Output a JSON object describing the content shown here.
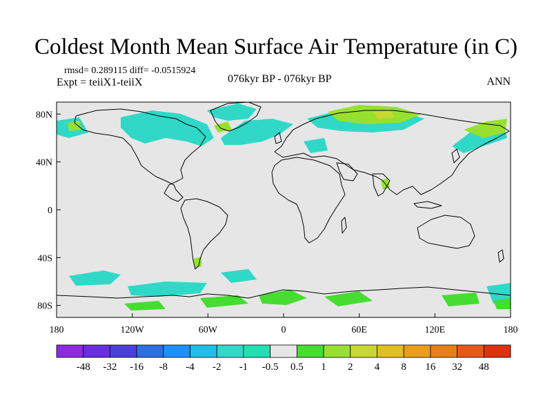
{
  "title": "Coldest Month Mean Surface Air Temperature (in C)",
  "stats": "rmsd= 0.289115 diff= -0.0515924",
  "expt": "Expt = teiiX1-teiiX",
  "period": "076kyr BP - 076kyr BP",
  "season": "ANN",
  "map": {
    "lon_range": [
      -180,
      180
    ],
    "lat_range": [
      -90,
      90
    ],
    "background": "#e6e6e6",
    "coastline_color": "#000000",
    "lon_ticks": [
      {
        "value": -180,
        "label": "180"
      },
      {
        "value": -120,
        "label": "120W"
      },
      {
        "value": -60,
        "label": "60W"
      },
      {
        "value": 0,
        "label": "0"
      },
      {
        "value": 60,
        "label": "60E"
      },
      {
        "value": 120,
        "label": "120E"
      },
      {
        "value": 180,
        "label": "180"
      }
    ],
    "lat_ticks": [
      {
        "value": 80,
        "label": "80N"
      },
      {
        "value": 40,
        "label": "40N"
      },
      {
        "value": 0,
        "label": "0"
      },
      {
        "value": -40,
        "label": "40S"
      },
      {
        "value": -80,
        "label": "80S"
      }
    ]
  },
  "colorbar": {
    "colors": [
      "#8a2be2",
      "#6a2de0",
      "#4b3fdc",
      "#2d6fe0",
      "#1e90ff",
      "#1ec0e8",
      "#30d8c8",
      "#20e0b0",
      "#e6e6e6",
      "#44dd30",
      "#98e030",
      "#c8d830",
      "#e0c020",
      "#e8a018",
      "#e88018",
      "#e85818",
      "#e03010"
    ],
    "labels": [
      "-48",
      "-32",
      "-16",
      "-8",
      "-4",
      "-2",
      "-1",
      "-0.5",
      "0.5",
      "1",
      "2",
      "4",
      "8",
      "16",
      "32",
      "48"
    ]
  }
}
